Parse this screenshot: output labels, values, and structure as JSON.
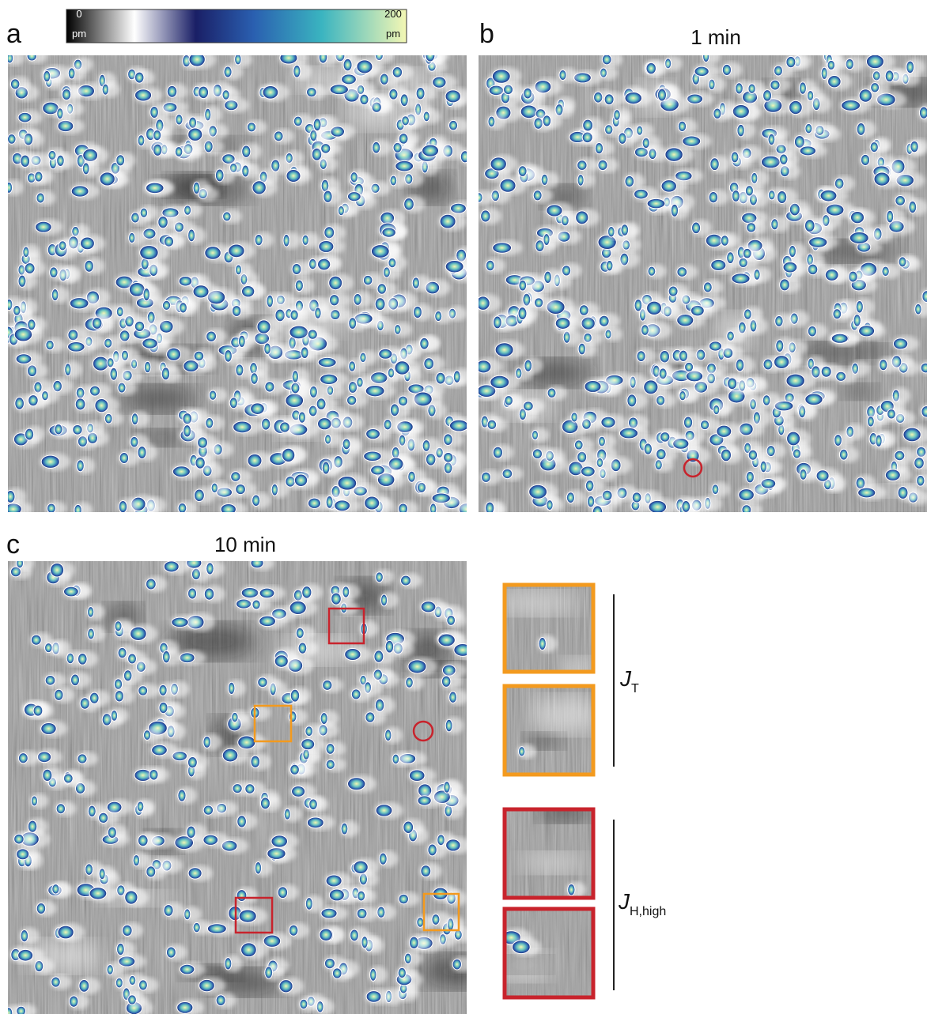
{
  "colorbar": {
    "min_label": "0",
    "max_label": "200",
    "unit": "pm"
  },
  "panels": [
    {
      "label": "a"
    },
    {
      "label": "b",
      "title": "1 min"
    },
    {
      "label": "c",
      "title": "10 min"
    }
  ],
  "insets": [
    {
      "label": "J",
      "subscript": "T"
    },
    {
      "label": "J",
      "subscript": "H,high"
    }
  ]
}
